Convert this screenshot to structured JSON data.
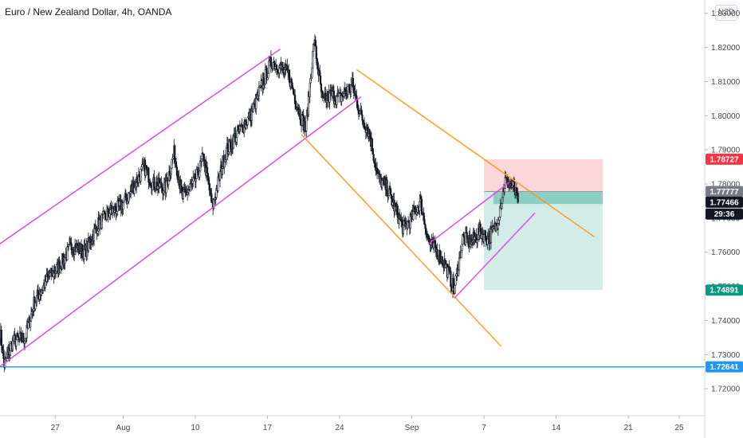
{
  "header": {
    "title": "Euro / New Zealand Dollar, 4h, OANDA",
    "currency_button": "NZD"
  },
  "chart_data": {
    "type": "candlestick",
    "title": "Euro / New Zealand Dollar, 4h, OANDA",
    "ylim": [
      1.7135,
      1.8325
    ],
    "y_ticks": [
      "1.72000",
      "1.73000",
      "1.74000",
      "1.75000",
      "1.76000",
      "1.77000",
      "1.78000",
      "1.79000",
      "1.80000",
      "1.81000",
      "1.82000",
      "1.83000"
    ],
    "x_ticks": [
      {
        "label": "27",
        "bar": 13
      },
      {
        "label": "Aug",
        "bar": 29
      },
      {
        "label": "10",
        "bar": 46
      },
      {
        "label": "17",
        "bar": 63
      },
      {
        "label": "24",
        "bar": 80
      },
      {
        "label": "Sep",
        "bar": 97
      },
      {
        "label": "7",
        "bar": 114
      },
      {
        "label": "14",
        "bar": 131
      },
      {
        "label": "21",
        "bar": 148
      },
      {
        "label": "25",
        "bar": 160
      }
    ],
    "x_bar_range": [
      0,
      166
    ],
    "price_path": [
      [
        0,
        1.737
      ],
      [
        1,
        1.727
      ],
      [
        3,
        1.734
      ],
      [
        6,
        1.735
      ],
      [
        8,
        1.745
      ],
      [
        11,
        1.752
      ],
      [
        14,
        1.756
      ],
      [
        17,
        1.762
      ],
      [
        20,
        1.76
      ],
      [
        23,
        1.768
      ],
      [
        26,
        1.772
      ],
      [
        28,
        1.773
      ],
      [
        30,
        1.776
      ],
      [
        34,
        1.785
      ],
      [
        36,
        1.78
      ],
      [
        39,
        1.779
      ],
      [
        41,
        1.789
      ],
      [
        43,
        1.776
      ],
      [
        46,
        1.781
      ],
      [
        48,
        1.788
      ],
      [
        50,
        1.773
      ],
      [
        53,
        1.789
      ],
      [
        56,
        1.795
      ],
      [
        59,
        1.8
      ],
      [
        62,
        1.81
      ],
      [
        64,
        1.816
      ],
      [
        66,
        1.814
      ],
      [
        68,
        1.812
      ],
      [
        70,
        1.803
      ],
      [
        72,
        1.796
      ],
      [
        74,
        1.822
      ],
      [
        76,
        1.804
      ],
      [
        78,
        1.806
      ],
      [
        80,
        1.805
      ],
      [
        83,
        1.809
      ],
      [
        85,
        1.8
      ],
      [
        87,
        1.795
      ],
      [
        89,
        1.782
      ],
      [
        91,
        1.779
      ],
      [
        93,
        1.773
      ],
      [
        95,
        1.767
      ],
      [
        97,
        1.77
      ],
      [
        99,
        1.775
      ],
      [
        101,
        1.763
      ],
      [
        103,
        1.76
      ],
      [
        105,
        1.756
      ],
      [
        107,
        1.749
      ],
      [
        109,
        1.764
      ],
      [
        111,
        1.763
      ],
      [
        113,
        1.766
      ],
      [
        115,
        1.764
      ],
      [
        117,
        1.768
      ],
      [
        119,
        1.781
      ],
      [
        121,
        1.779
      ],
      [
        122,
        1.7746
      ]
    ],
    "lines": [
      {
        "name": "upper-channel-top",
        "color": "#e040e8",
        "p1": [
          0,
          1.7625
        ],
        "p2": [
          66,
          1.8195
        ]
      },
      {
        "name": "upper-channel-bottom",
        "color": "#e040e8",
        "p1": [
          0,
          1.7265
        ],
        "p2": [
          85,
          1.8055
        ]
      },
      {
        "name": "descending-top",
        "color": "#ff9a14",
        "p1": [
          84,
          1.8135
        ],
        "p2": [
          140,
          1.7645
        ]
      },
      {
        "name": "descending-bottom",
        "color": "#ff9a14",
        "p1": [
          71,
          1.7945
        ],
        "p2": [
          118,
          1.7325
        ]
      },
      {
        "name": "small-channel-top",
        "color": "#e040e8",
        "p1": [
          101,
          1.7625
        ],
        "p2": [
          120,
          1.7805
        ]
      },
      {
        "name": "small-channel-bottom",
        "color": "#e040e8",
        "p1": [
          107,
          1.7465
        ],
        "p2": [
          126,
          1.7715
        ]
      }
    ],
    "support_level": {
      "price": 1.72641,
      "color": "#2196f3"
    },
    "position": {
      "entry": 1.77777,
      "stop": 1.78727,
      "target": 1.74891,
      "bar_from": 114,
      "bar_to": 142
    },
    "price_tags": [
      {
        "label": "1.78727",
        "price": 1.78727,
        "bg": "#f23645",
        "fg": "#ffffff"
      },
      {
        "label": "1.77777",
        "price": 1.77777,
        "bg": "#787b86",
        "fg": "#ffffff"
      },
      {
        "label": "1.77466",
        "price": 1.77466,
        "bg": "#131722",
        "fg": "#ffffff"
      },
      {
        "label": "29:36",
        "price": 1.7712,
        "bg": "#131722",
        "fg": "#ffffff"
      },
      {
        "label": "1.74891",
        "price": 1.74891,
        "bg": "#089981",
        "fg": "#ffffff"
      },
      {
        "label": "1.72641",
        "price": 1.72641,
        "bg": "#2196f3",
        "fg": "#ffffff"
      }
    ]
  }
}
